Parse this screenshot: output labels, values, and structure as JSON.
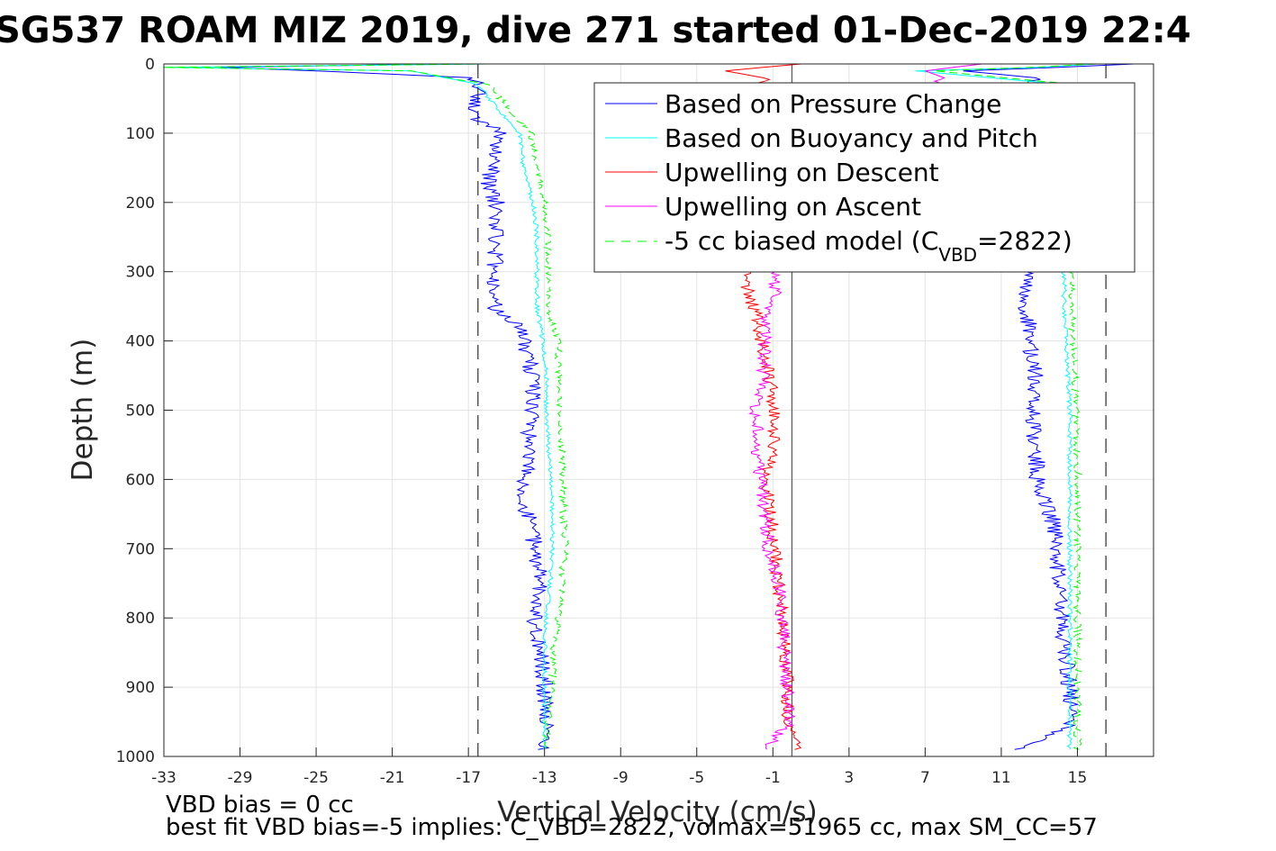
{
  "chart_data": {
    "type": "line",
    "title": "SG537 ROAM MIZ 2019, dive 271 started 01-Dec-2019 22:4",
    "xlabel": "Vertical Velocity (cm/s)",
    "ylabel": "Depth (m)",
    "xlim": [
      -33,
      19
    ],
    "ylim": [
      0,
      1000
    ],
    "y_reversed": true,
    "grid": true,
    "legend_position": "top-right",
    "x_ticks": [
      -33,
      -29,
      -25,
      -21,
      -17,
      -13,
      -9,
      -5,
      -1,
      3,
      7,
      11,
      15
    ],
    "x_tick_labels": [
      "-33",
      "-29",
      "-25",
      "-21",
      "-17",
      "-13",
      "-9",
      "-5",
      "-1",
      "3",
      "7",
      "11",
      "15"
    ],
    "y_ticks": [
      0,
      100,
      200,
      300,
      400,
      500,
      600,
      700,
      800,
      900,
      1000
    ],
    "y_tick_labels": [
      "0",
      "100",
      "200",
      "300",
      "400",
      "500",
      "600",
      "700",
      "800",
      "900",
      "1000"
    ],
    "reference_lines": {
      "zero_line_x": 0,
      "dashed_lines_x": [
        -16.5,
        16.5
      ],
      "color": "#555555"
    },
    "legend": [
      {
        "key": "pressure",
        "label": "Based on Pressure Change",
        "color": "#0000ff",
        "dash": false
      },
      {
        "key": "buoyancy",
        "label": "Based on Buoyancy and Pitch",
        "color": "#00ffff",
        "dash": false
      },
      {
        "key": "up_descent",
        "label": "Upwelling on Descent",
        "color": "#ff0000",
        "dash": false
      },
      {
        "key": "up_ascent",
        "label": "Upwelling on Ascent",
        "color": "#ff00ff",
        "dash": false
      },
      {
        "key": "biased",
        "label_main": "-5 cc biased model (C",
        "label_sub": "VBD",
        "label_end": "=2822)",
        "color": "#00ff00",
        "dash": true
      }
    ],
    "series": [
      {
        "name": "Based on Pressure Change",
        "color": "#0000ff",
        "depth": [
          0,
          5,
          10,
          20,
          40,
          60,
          80,
          100,
          120,
          150,
          180,
          200,
          250,
          300,
          330,
          360,
          380,
          420,
          460,
          500,
          550,
          600,
          630,
          660,
          700,
          750,
          790,
          830,
          870,
          900,
          950,
          990
        ],
        "descent_velocity": [
          -18,
          -30,
          -25,
          -16.8,
          -16.2,
          -16.8,
          -16.5,
          -15.2,
          -15.5,
          -15.8,
          -16,
          -15.5,
          -15.5,
          -15.6,
          -15.8,
          -15.5,
          -14.2,
          -13.9,
          -13.6,
          -13.6,
          -13.9,
          -14,
          -14.4,
          -13.7,
          -13.5,
          -13.2,
          -13.6,
          -13.3,
          -13.1,
          -13,
          -12.9,
          -13
        ],
        "ascent_velocity": [
          18,
          14,
          9,
          12.8,
          12.9,
          12.7,
          12.6,
          12.5,
          12.5,
          12.4,
          12.5,
          12.6,
          12.7,
          12.6,
          12.3,
          12.3,
          12.5,
          12.6,
          12.8,
          12.6,
          12.8,
          12.9,
          13.3,
          13.7,
          13.9,
          14,
          14.1,
          14.3,
          14.5,
          14.6,
          14.8,
          12
        ]
      },
      {
        "name": "Based on Buoyancy and Pitch",
        "color": "#00ffff",
        "depth": [
          0,
          5,
          10,
          30,
          60,
          100,
          150,
          200,
          250,
          300,
          350,
          400,
          450,
          500,
          550,
          600,
          650,
          700,
          750,
          800,
          850,
          900,
          950,
          990
        ],
        "descent_velocity": [
          -16,
          -33,
          -20,
          -16.5,
          -15.6,
          -14.3,
          -14.1,
          -13.6,
          -13.4,
          -13.4,
          -13.4,
          -13.1,
          -12.9,
          -12.9,
          -12.8,
          -12.7,
          -12.6,
          -12.6,
          -12.7,
          -12.9,
          -13,
          -13,
          -13,
          -13
        ],
        "ascent_velocity": [
          16,
          13,
          6.5,
          14.4,
          14.4,
          14.4,
          14.4,
          14.4,
          14.4,
          14.3,
          14.3,
          14.4,
          14.5,
          14.6,
          14.6,
          14.6,
          14.6,
          14.6,
          14.6,
          14.6,
          14.6,
          14.6,
          14.6,
          14.6
        ]
      },
      {
        "name": "Upwelling on Descent",
        "color": "#ff0000",
        "depth": [
          0,
          10,
          20,
          300,
          330,
          360,
          400,
          450,
          500,
          550,
          600,
          650,
          700,
          750,
          800,
          850,
          900,
          950,
          990
        ],
        "velocity": [
          0.5,
          -3.5,
          -1.5,
          -2.5,
          -2.3,
          -1.9,
          -1.6,
          -1.2,
          -0.9,
          -1,
          -1.4,
          -1.1,
          -0.9,
          -0.7,
          -0.5,
          -0.4,
          -0.2,
          -0.3,
          0.3
        ]
      },
      {
        "name": "Upwelling on Ascent",
        "color": "#ff00ff",
        "depth": [
          0,
          10,
          20,
          300,
          330,
          360,
          400,
          450,
          500,
          550,
          600,
          650,
          700,
          750,
          800,
          850,
          900,
          950,
          990
        ],
        "velocity": [
          10,
          7,
          8,
          -1,
          -0.8,
          -1.4,
          -1.4,
          -1.5,
          -1.9,
          -1.8,
          -1.7,
          -1.4,
          -1.2,
          -0.7,
          -0.5,
          -0.4,
          -0.3,
          0,
          -1.5
        ]
      },
      {
        "name": "-5 cc biased model (CVBD=2822)",
        "color": "#00ff00",
        "dash": true,
        "depth": [
          0,
          5,
          10,
          30,
          60,
          100,
          150,
          200,
          250,
          300,
          350,
          400,
          450,
          500,
          550,
          600,
          650,
          700,
          750,
          800,
          850,
          900,
          950,
          990
        ],
        "descent_velocity": [
          -16,
          -33,
          -20,
          -16,
          -15,
          -13.7,
          -13.4,
          -13,
          -12.8,
          -12.8,
          -12.9,
          -12.3,
          -12.2,
          -12.2,
          -12.1,
          -12,
          -12,
          -11.9,
          -12.1,
          -12.3,
          -12.5,
          -12.6,
          -12.8,
          -13
        ],
        "ascent_velocity": [
          16,
          12.5,
          7.5,
          14.8,
          14.8,
          14.8,
          14.8,
          14.8,
          14.8,
          14.7,
          14.7,
          14.8,
          14.9,
          14.9,
          15,
          15,
          15,
          15,
          15,
          15,
          15,
          15,
          15,
          15
        ]
      }
    ],
    "notes": [
      "VBD bias = 0 cc",
      "best fit VBD bias=-5 implies: C_VBD=2822, volmax=51965 cc, max SM_CC=57"
    ]
  }
}
